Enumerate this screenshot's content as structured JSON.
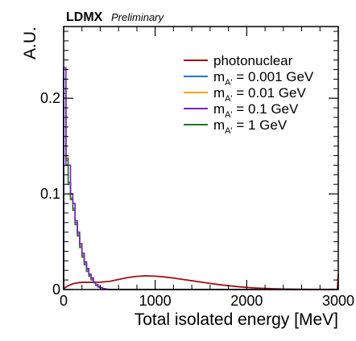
{
  "chart_data": {
    "type": "line",
    "experiment_label": "LDMX",
    "experiment_sublabel": "Preliminary",
    "xlabel": "Total isolated energy [MeV]",
    "ylabel": "A.U.",
    "xlim": [
      0,
      3000
    ],
    "ylim": [
      0,
      0.275
    ],
    "xticks": [
      0,
      1000,
      2000,
      3000
    ],
    "yticks": [
      0,
      0.1,
      0.2
    ],
    "xtick_labels": [
      "0",
      "1000",
      "2000",
      "3000"
    ],
    "ytick_labels": [
      "0",
      "0.1",
      "0.2"
    ],
    "legend_position": "top-right",
    "grid": false,
    "bin_width": 25,
    "series": [
      {
        "name": "photonuclear",
        "legend_main": "photonuclear",
        "legend_sub": "",
        "legend_rest": "",
        "style": "smooth",
        "color": "#a01010",
        "x": [
          0,
          50,
          100,
          150,
          200,
          300,
          400,
          500,
          600,
          700,
          800,
          900,
          1000,
          1100,
          1200,
          1300,
          1400,
          1500,
          1600,
          1700,
          1800,
          1900,
          2000,
          2100,
          2200,
          2300,
          2400,
          2500,
          2600,
          2700,
          2800,
          2900,
          2990,
          3000
        ],
        "values": [
          0.001,
          0.004,
          0.006,
          0.007,
          0.0075,
          0.0075,
          0.0077,
          0.0085,
          0.0105,
          0.0125,
          0.0138,
          0.0143,
          0.014,
          0.0132,
          0.012,
          0.0106,
          0.0092,
          0.0078,
          0.0064,
          0.0051,
          0.004,
          0.003,
          0.0022,
          0.0016,
          0.0011,
          0.0008,
          0.0005,
          0.0004,
          0.0003,
          0.0002,
          0.0002,
          0.0002,
          0.0002,
          0.016
        ]
      },
      {
        "name": "m_A' = 0.001 GeV",
        "legend_main": "m",
        "legend_sub": "A'",
        "legend_rest": " = 0.001 GeV",
        "style": "step",
        "color": "#1f77d4",
        "values": [
          0.205,
          0.135,
          0.11,
          0.095,
          0.085,
          0.07,
          0.058,
          0.046,
          0.036,
          0.028,
          0.021,
          0.016,
          0.012,
          0.008,
          0.005,
          0.003,
          0.002,
          0.001,
          0.0005,
          0.0002
        ]
      },
      {
        "name": "m_A' = 0.01 GeV",
        "legend_main": "m",
        "legend_sub": "A'",
        "legend_rest": " = 0.01 GeV",
        "style": "step",
        "color": "#ff9f1a",
        "values": [
          0.21,
          0.14,
          0.112,
          0.096,
          0.084,
          0.069,
          0.057,
          0.045,
          0.035,
          0.027,
          0.02,
          0.015,
          0.011,
          0.007,
          0.0045,
          0.0028,
          0.0018,
          0.001,
          0.0004,
          0.0002
        ]
      },
      {
        "name": "m_A' = 0.1 GeV",
        "legend_main": "m",
        "legend_sub": "A'",
        "legend_rest": " = 0.1 GeV",
        "style": "step",
        "color": "#7a1fc9",
        "values": [
          0.232,
          0.13,
          0.13,
          0.1,
          0.09,
          0.072,
          0.06,
          0.048,
          0.038,
          0.029,
          0.022,
          0.016,
          0.012,
          0.008,
          0.005,
          0.003,
          0.002,
          0.001,
          0.0005,
          0.0002
        ]
      },
      {
        "name": "m_A' = 1 GeV",
        "legend_main": "m",
        "legend_sub": "A'",
        "legend_rest": " = 1 GeV",
        "style": "step",
        "color": "#1f7a1f",
        "values": [
          0.22,
          0.137,
          0.112,
          0.094,
          0.083,
          0.068,
          0.056,
          0.044,
          0.034,
          0.026,
          0.019,
          0.014,
          0.01,
          0.007,
          0.0042,
          0.0026,
          0.0016,
          0.0009,
          0.0004,
          0.0002
        ]
      }
    ]
  }
}
